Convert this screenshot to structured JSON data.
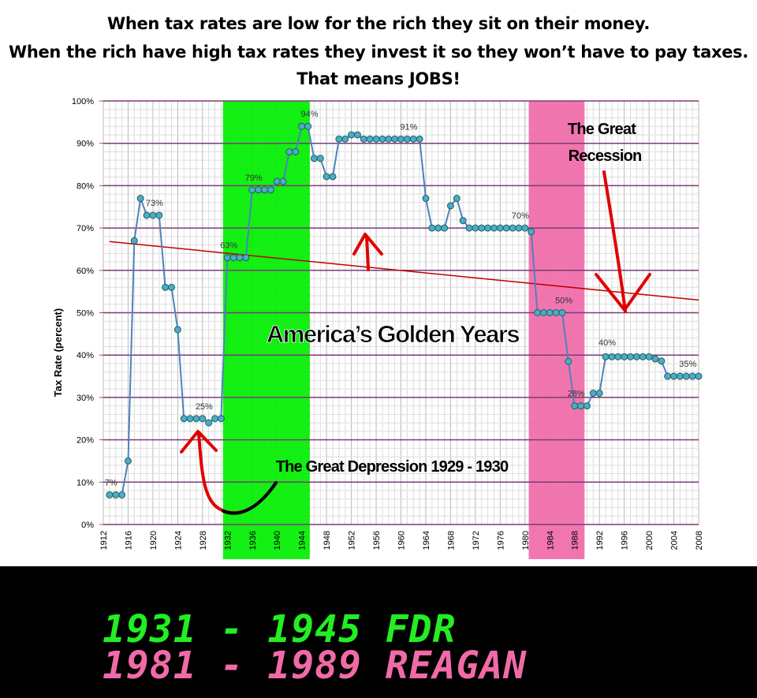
{
  "header": {
    "line1": "When tax rates are low for the rich they  sit on their money.",
    "line2": "When the rich have high tax rates they invest it so they won’t have to pay taxes.",
    "line3": "That means JOBS!"
  },
  "footer": {
    "fdr": "1931 - 1945 FDR",
    "reagan": "1981 - 1989 REAGAN"
  },
  "chart_data": {
    "type": "line",
    "title": "",
    "ylabel": "Tax Rate (percent)",
    "xlabel": "",
    "ylim": [
      0,
      100
    ],
    "xlim": [
      1912,
      2008
    ],
    "y_ticks": [
      "0%",
      "10%",
      "20%",
      "30%",
      "40%",
      "50%",
      "60%",
      "70%",
      "80%",
      "90%",
      "100%"
    ],
    "x_ticks": [
      1912,
      1916,
      1920,
      1924,
      1928,
      1932,
      1936,
      1940,
      1944,
      1948,
      1952,
      1956,
      1960,
      1964,
      1968,
      1972,
      1976,
      1980,
      1984,
      1988,
      1992,
      1996,
      2000,
      2004,
      2008
    ],
    "grid": true,
    "series": [
      {
        "color": "#4f81bd",
        "marker_color": "#4bacc6",
        "x": [
          1913,
          1914,
          1915,
          1916,
          1917,
          1918,
          1919,
          1920,
          1921,
          1922,
          1923,
          1924,
          1925,
          1926,
          1927,
          1928,
          1929,
          1930,
          1931,
          1932,
          1933,
          1934,
          1935,
          1936,
          1937,
          1938,
          1939,
          1940,
          1941,
          1942,
          1943,
          1944,
          1945,
          1946,
          1947,
          1948,
          1949,
          1950,
          1951,
          1952,
          1953,
          1954,
          1955,
          1956,
          1957,
          1958,
          1959,
          1960,
          1961,
          1962,
          1963,
          1964,
          1965,
          1966,
          1967,
          1968,
          1969,
          1970,
          1971,
          1972,
          1973,
          1974,
          1975,
          1976,
          1977,
          1978,
          1979,
          1980,
          1981,
          1982,
          1983,
          1984,
          1985,
          1986,
          1987,
          1988,
          1989,
          1990,
          1991,
          1992,
          1993,
          1994,
          1995,
          1996,
          1997,
          1998,
          1999,
          2000,
          2001,
          2002,
          2003,
          2004,
          2005,
          2006,
          2007,
          2008
        ],
        "y": [
          7,
          7,
          7,
          15,
          67,
          77,
          73,
          73,
          73,
          56,
          56,
          46,
          25,
          25,
          25,
          25,
          24,
          25,
          25,
          63,
          63,
          63,
          63,
          79,
          79,
          79,
          79,
          81,
          81,
          88,
          88,
          94,
          94,
          86.45,
          86.45,
          82.13,
          82.13,
          91,
          91,
          92,
          92,
          91,
          91,
          91,
          91,
          91,
          91,
          91,
          91,
          91,
          91,
          77,
          70,
          70,
          70,
          75.25,
          77,
          71.75,
          70,
          70,
          70,
          70,
          70,
          70,
          70,
          70,
          70,
          70,
          69.13,
          50,
          50,
          50,
          50,
          50,
          38.5,
          28,
          28,
          28,
          31,
          31,
          39.6,
          39.6,
          39.6,
          39.6,
          39.6,
          39.6,
          39.6,
          39.6,
          39.1,
          38.6,
          35,
          35,
          35,
          35,
          35,
          35
        ]
      }
    ],
    "trendline": {
      "color": "#c00000",
      "x": [
        1913,
        2008
      ],
      "y": [
        66.8,
        53
      ]
    },
    "data_labels": [
      {
        "x": 1913,
        "y": 7,
        "text": "7%"
      },
      {
        "x": 1920,
        "y": 73,
        "text": "73%"
      },
      {
        "x": 1928,
        "y": 25,
        "text": "25%"
      },
      {
        "x": 1932,
        "y": 63,
        "text": "63%"
      },
      {
        "x": 1936,
        "y": 79,
        "text": "79%"
      },
      {
        "x": 1945,
        "y": 94,
        "text": "94%"
      },
      {
        "x": 1961,
        "y": 91,
        "text": "91%"
      },
      {
        "x": 1979,
        "y": 70,
        "text": "70%"
      },
      {
        "x": 1986,
        "y": 50,
        "text": "50%"
      },
      {
        "x": 1988,
        "y": 28,
        "text": "28%"
      },
      {
        "x": 1993,
        "y": 40,
        "text": "40%"
      },
      {
        "x": 2006,
        "y": 35,
        "text": "35%"
      }
    ],
    "highlight_bands": [
      {
        "x_start": 1931.3,
        "x_end": 1945.3,
        "color": "#00ee00"
      },
      {
        "x_start": 1980.6,
        "x_end": 1989.6,
        "color": "#f06aa8"
      }
    ],
    "annotations": {
      "golden_years": "America’s Golden Years",
      "great_depression": "The Great Depression 1929 - 1930",
      "great_recession_1": "The Great",
      "great_recession_2": "Recession"
    }
  }
}
